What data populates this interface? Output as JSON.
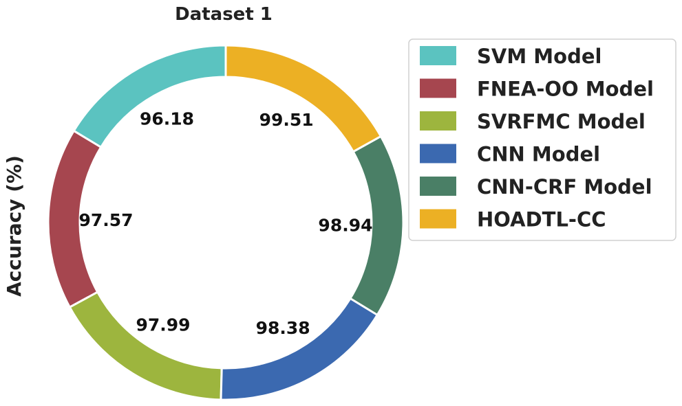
{
  "chart_data": {
    "type": "pie",
    "title": "Dataset 1",
    "ylabel": "Accuracy (%)",
    "series": [
      {
        "name": "SVM Model",
        "value": 96.18,
        "label": "96.18",
        "color": "#5bc3c0"
      },
      {
        "name": "FNEA-OO Model",
        "value": 97.57,
        "label": "97.57",
        "color": "#a6464f"
      },
      {
        "name": "SVRFMC Model",
        "value": 97.99,
        "label": "97.99",
        "color": "#9db53e"
      },
      {
        "name": "CNN Model",
        "value": 98.38,
        "label": "98.38",
        "color": "#3b69b0"
      },
      {
        "name": "CNN-CRF Model",
        "value": 98.94,
        "label": "98.94",
        "color": "#4a7f66"
      },
      {
        "name": "HOADTL-CC",
        "value": 99.51,
        "label": "99.51",
        "color": "#ecb024"
      }
    ],
    "start_angle_deg": 90,
    "direction": "counterclockwise",
    "donut": true,
    "legend_position": "upper-right"
  }
}
